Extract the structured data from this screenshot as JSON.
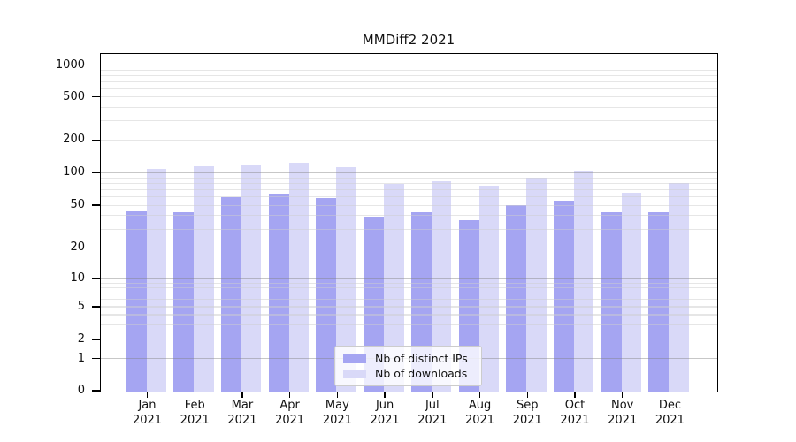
{
  "chart_data": {
    "type": "bar",
    "title": "MMDiff2 2021",
    "y_scale": "symlog",
    "categories": [
      "Jan",
      "Feb",
      "Mar",
      "Apr",
      "May",
      "Jun",
      "Jul",
      "Aug",
      "Sep",
      "Oct",
      "Nov",
      "Dec"
    ],
    "category_year": "2021",
    "series": [
      {
        "name": "Nb of distinct IPs",
        "color": "#a5a5f2",
        "values": [
          45,
          44,
          60,
          65,
          59,
          40,
          44,
          37,
          51,
          56,
          44,
          44
        ]
      },
      {
        "name": "Nb of downloads",
        "color": "#d9d9f8",
        "values": [
          110,
          117,
          119,
          126,
          115,
          80,
          85,
          77,
          92,
          105,
          67,
          82
        ]
      }
    ],
    "y_tick_labels": [
      "0",
      "1",
      "2",
      "5",
      "10",
      "20",
      "50",
      "100",
      "200",
      "500",
      "1000"
    ],
    "y_tick_values": [
      0,
      1,
      2,
      5,
      10,
      20,
      50,
      100,
      200,
      500,
      1000
    ],
    "grid_major_values": [
      1,
      10,
      100,
      1000
    ],
    "grid_minor_values": [
      2,
      3,
      4,
      5,
      6,
      7,
      8,
      9,
      20,
      30,
      40,
      50,
      60,
      70,
      80,
      90,
      200,
      300,
      400,
      500,
      600,
      700,
      800,
      900
    ],
    "ylim": [
      0,
      1200
    ],
    "grid": true,
    "legend_position": "lower center",
    "xlabel": "",
    "ylabel": ""
  },
  "colors": {
    "axis_frame": "#000000",
    "background": "#ffffff",
    "grid_major": "#bdbdbd",
    "grid_minor": "#e8e8e8",
    "legend_border": "#cccccc"
  }
}
